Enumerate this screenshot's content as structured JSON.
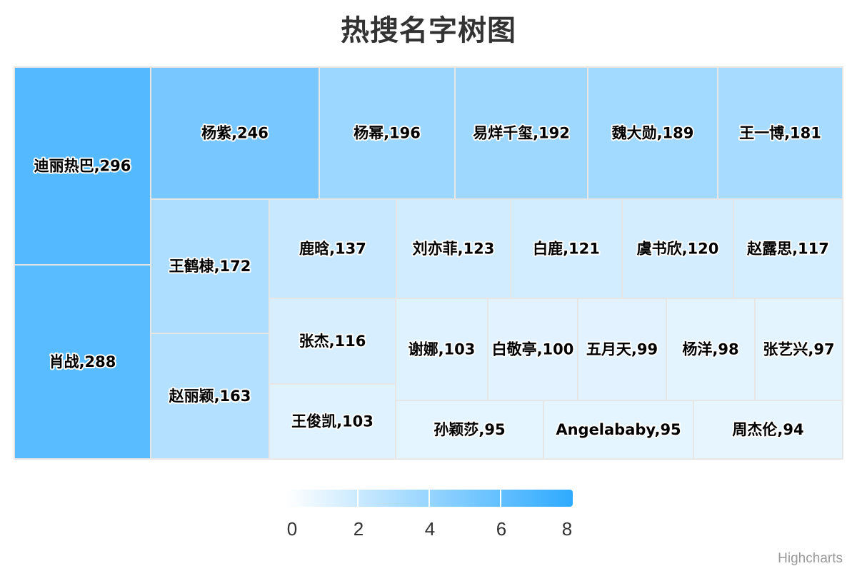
{
  "chart_data": {
    "type": "treemap",
    "title": "热搜名字树图",
    "items": [
      {
        "name": "迪丽热巴",
        "value": 296
      },
      {
        "name": "肖战",
        "value": 288
      },
      {
        "name": "杨紫",
        "value": 246
      },
      {
        "name": "杨幂",
        "value": 196
      },
      {
        "name": "易烊千玺",
        "value": 192
      },
      {
        "name": "魏大勋",
        "value": 189
      },
      {
        "name": "王一博",
        "value": 181
      },
      {
        "name": "王鹤棣",
        "value": 172
      },
      {
        "name": "赵丽颖",
        "value": 163
      },
      {
        "name": "鹿晗",
        "value": 137
      },
      {
        "name": "刘亦菲",
        "value": 123
      },
      {
        "name": "白鹿",
        "value": 121
      },
      {
        "name": "虞书欣",
        "value": 120
      },
      {
        "name": "赵露思",
        "value": 117
      },
      {
        "name": "张杰",
        "value": 116
      },
      {
        "name": "王俊凯",
        "value": 103
      },
      {
        "name": "谢娜",
        "value": 103
      },
      {
        "name": "白敬亭",
        "value": 100
      },
      {
        "name": "五月天",
        "value": 99
      },
      {
        "name": "杨洋",
        "value": 98
      },
      {
        "name": "张艺兴",
        "value": 97
      },
      {
        "name": "孙颖莎",
        "value": 95
      },
      {
        "name": "Angelababy",
        "value": 95
      },
      {
        "name": "周杰伦",
        "value": 94
      }
    ],
    "color_axis": {
      "ticks": [
        "0",
        "2",
        "4",
        "6",
        "8"
      ],
      "min_color": "#ffffff",
      "max_color": "#2eaaff"
    }
  },
  "credits": "Highcharts"
}
